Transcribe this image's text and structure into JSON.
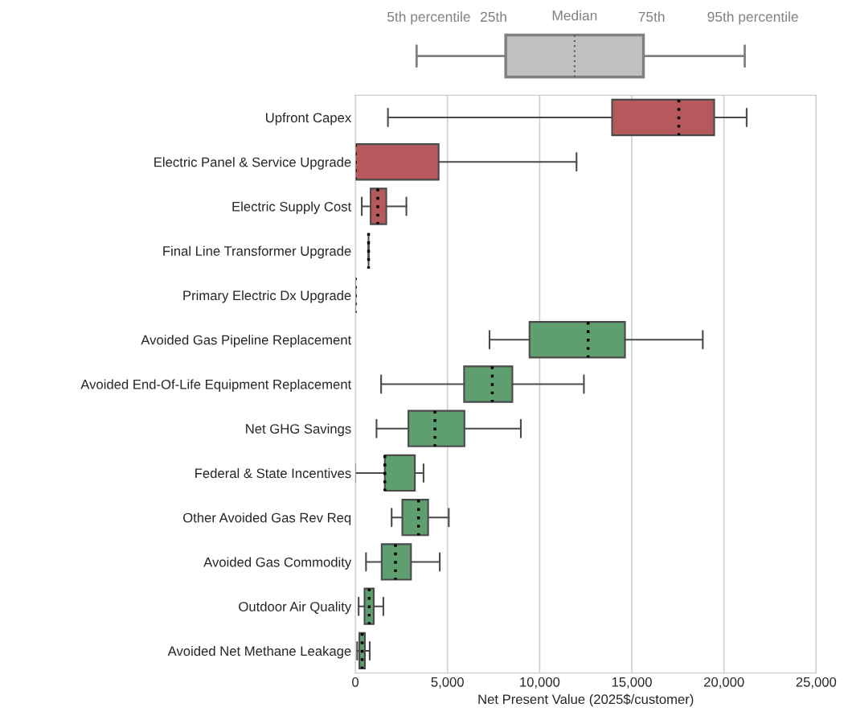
{
  "chart_data": {
    "type": "box",
    "orientation": "horizontal",
    "xlabel": "Net Present Value (2025$/customer)",
    "categories": [
      "Upfront Capex",
      "Electric Panel & Service Upgrade",
      "Electric Supply Cost",
      "Final Line Transformer Upgrade",
      "Primary Electric Dx Upgrade",
      "Avoided Gas Pipeline Replacement",
      "Avoided End-Of-Life Equipment Replacement",
      "Net GHG Savings",
      "Federal & State Incentives",
      "Other Avoided Gas Rev Req",
      "Avoided Gas Commodity",
      "Outdoor Air Quality",
      "Avoided Net Methane Leakage"
    ],
    "boxes": [
      {
        "low": 1770,
        "q1": 13930,
        "median": 17550,
        "q3": 19470,
        "high": 21230
      },
      {
        "low": 0,
        "q1": 0,
        "median": 0,
        "q3": 4520,
        "high": 12000
      },
      {
        "low": 350,
        "q1": 830,
        "median": 1220,
        "q3": 1680,
        "high": 2770
      },
      {
        "low": 720,
        "q1": 720,
        "median": 720,
        "q3": 720,
        "high": 720
      },
      {
        "low": 0,
        "q1": 0,
        "median": 0,
        "q3": 0,
        "high": 0
      },
      {
        "low": 7280,
        "q1": 9450,
        "median": 12630,
        "q3": 14630,
        "high": 18850
      },
      {
        "low": 1400,
        "q1": 5900,
        "median": 7430,
        "q3": 8520,
        "high": 12400
      },
      {
        "low": 1150,
        "q1": 2880,
        "median": 4320,
        "q3": 5920,
        "high": 8980
      },
      {
        "low": 0,
        "q1": 1600,
        "median": 1600,
        "q3": 3230,
        "high": 3700
      },
      {
        "low": 1970,
        "q1": 2550,
        "median": 3430,
        "q3": 3950,
        "high": 5070
      },
      {
        "low": 580,
        "q1": 1430,
        "median": 2180,
        "q3": 3020,
        "high": 4580
      },
      {
        "low": 180,
        "q1": 500,
        "median": 750,
        "q3": 1000,
        "high": 1520
      },
      {
        "low": 100,
        "q1": 220,
        "median": 370,
        "q3": 520,
        "high": 780
      }
    ],
    "colors": [
      "#b5595c",
      "#b5595c",
      "#b5595c",
      null,
      null,
      "#5f9e6e",
      "#5f9e6e",
      "#5f9e6e",
      "#5f9e6e",
      "#5f9e6e",
      "#5f9e6e",
      "#5f9e6e",
      "#5f9e6e"
    ],
    "xlim": [
      0,
      25000
    ],
    "xticks": [
      0,
      {
        "value": 5000,
        "label": "5,000"
      },
      {
        "value": 10000,
        "label": "10,000"
      },
      {
        "value": 15000,
        "label": "15,000"
      },
      {
        "value": 20000,
        "label": "20,000"
      },
      {
        "value": 25000,
        "label": "25,000"
      }
    ],
    "grid": "x",
    "annotations": [
      "5th percentile",
      "25th",
      "Median",
      "75th",
      "95th percentile"
    ]
  }
}
